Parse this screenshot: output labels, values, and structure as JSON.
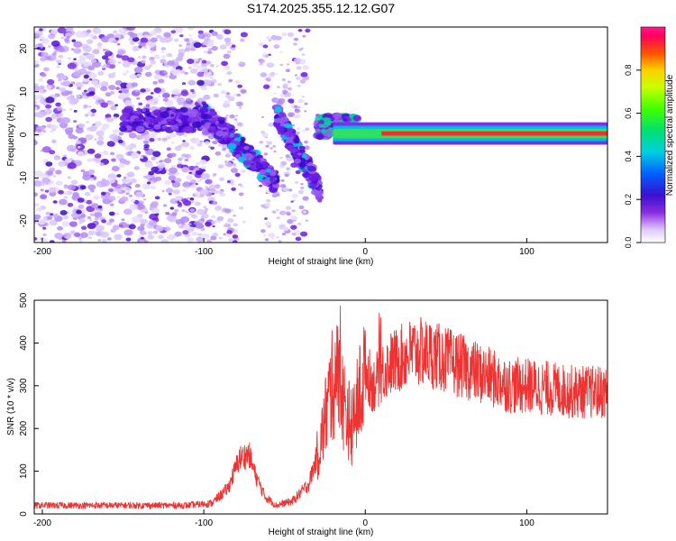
{
  "chart_data": [
    {
      "type": "heatmap",
      "title": "S174.2025.355.12.12.G07",
      "xlabel": "Height of straight line (km)",
      "ylabel": "Frequency (Hz)",
      "xlim": [
        -205,
        150
      ],
      "ylim": [
        -25,
        25
      ],
      "xticks": [
        -200,
        -100,
        0,
        100
      ],
      "yticks": [
        -20,
        -10,
        0,
        10,
        20
      ],
      "colorbar": {
        "label": "Normalized spectral amplitude",
        "range": [
          0,
          1
        ],
        "ticks": [
          "0.0",
          "0.2",
          "0.4",
          "0.6",
          "0.8"
        ]
      },
      "features": {
        "noise_region_x": [
          -205,
          -95
        ],
        "gap_region_x": [
          -75,
          -65
        ],
        "diagonal_band_1": {
          "x": [
            -100,
            -55
          ],
          "y": [
            5,
            -11
          ]
        },
        "diagonal_band_2": {
          "x": [
            -55,
            -28
          ],
          "y": [
            5,
            -13
          ]
        },
        "tone_line": {
          "x": [
            -20,
            150
          ],
          "y": 0.3,
          "peak_amplitude": 0.95
        }
      }
    },
    {
      "type": "line",
      "xlabel": "Height of straight line (km)",
      "ylabel": "SNR (10 * v/v)",
      "xlim": [
        -205,
        150
      ],
      "ylim": [
        0,
        500
      ],
      "xticks": [
        -200,
        -100,
        0,
        100
      ],
      "yticks": [
        0,
        100,
        200,
        300,
        400,
        500
      ],
      "color": "#ee3333",
      "series": [
        {
          "name": "SNR",
          "x": [
            -205,
            -150,
            -110,
            -95,
            -85,
            -78,
            -72,
            -68,
            -62,
            -55,
            -45,
            -35,
            -28,
            -22,
            -18,
            -12,
            -8,
            -4,
            0,
            5,
            10,
            15,
            20,
            30,
            40,
            50,
            60,
            70,
            80,
            90,
            100,
            110,
            120,
            130,
            140,
            150
          ],
          "y": [
            20,
            20,
            20,
            25,
            60,
            130,
            140,
            90,
            40,
            20,
            30,
            70,
            160,
            280,
            330,
            240,
            200,
            270,
            340,
            300,
            330,
            350,
            360,
            380,
            375,
            360,
            345,
            330,
            315,
            300,
            300,
            295,
            290,
            285,
            285,
            285
          ]
        }
      ]
    }
  ]
}
